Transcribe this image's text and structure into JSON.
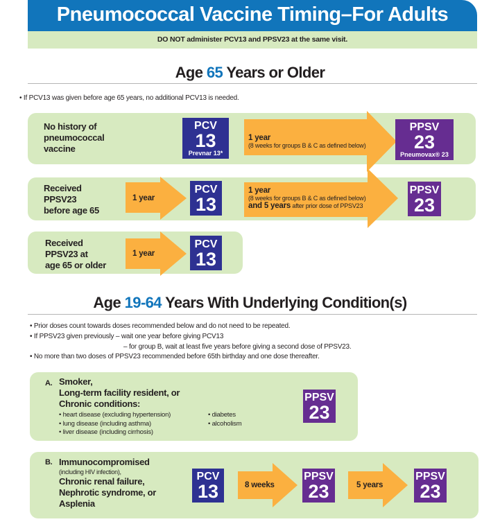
{
  "header": {
    "title": "Pneumococcal Vaccine Timing–For Adults",
    "warning": "DO NOT administer PCV13 and PPSV23 at the same visit."
  },
  "colors": {
    "header_blue": "#1175bb",
    "panel_green": "#d7eac0",
    "pcv_navy": "#2e3192",
    "ppsv_purple": "#662d91",
    "arrow_orange": "#fbb040"
  },
  "vaccines": {
    "pcv_top": "PCV",
    "pcv_num": "13",
    "pcv_brand": "Prevnar 13*",
    "ppsv_top": "PPSV",
    "ppsv_num": "23",
    "ppsv_brand": "Pneumovax® 23"
  },
  "section1": {
    "heading_pre": "Age ",
    "heading_num": "65",
    "heading_post": " Years or Older",
    "note": "• If PCV13 was given before age 65 years, no additional PCV13 is needed.",
    "rows": [
      {
        "label_lines": [
          "No history of",
          "pneumococcal",
          "vaccine"
        ],
        "interval_main": "1 year",
        "interval_sub": "(8 weeks for groups B & C as defined below)"
      },
      {
        "label_lines": [
          "Received",
          "PPSV23",
          "before age 65"
        ],
        "interval1": "1 year",
        "interval_main": "1 year",
        "interval_sub": "(8 weeks for groups B & C as defined below)",
        "interval_extra_bold": "and 5 years",
        "interval_extra": " after prior dose of PPSV23"
      },
      {
        "label_lines": [
          "Received",
          "PPSV23 at",
          "age 65 or older"
        ],
        "interval1": "1 year"
      }
    ]
  },
  "section2": {
    "heading_pre": "Age ",
    "heading_num": "19-64",
    "heading_post": " Years With Underlying Condition(s)",
    "notes": [
      "• Prior doses count towards doses recommended below and do not need to be repeated.",
      "• If PPSV23 given previously – wait one year before giving PCV13",
      "– for group B, wait at least five years before giving a second dose of PPSV23.",
      "• No more than two doses of PPSV23 recommended before 65th birthday and one dose thereafter."
    ],
    "group_a": {
      "letter": "A.",
      "lines": [
        "Smoker,",
        "Long-term facility resident, or",
        "Chronic conditions:"
      ],
      "conditions_left": [
        "• heart disease (excluding hypertension)",
        "• lung disease (including asthma)",
        "• liver disease (including cirrhosis)"
      ],
      "conditions_right": [
        "• diabetes",
        "• alcoholism"
      ]
    },
    "group_b": {
      "letter": "B.",
      "line1": "Immunocompromised",
      "line1_sub": "(including HIV infection),",
      "lines": [
        "Chronic renal failure,",
        "Nephrotic syndrome, or",
        "Asplenia"
      ],
      "interval1": "8 weeks",
      "interval2": "5 years"
    }
  }
}
